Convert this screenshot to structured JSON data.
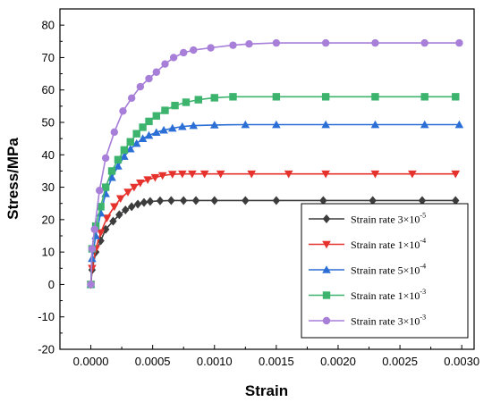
{
  "chart_data": {
    "type": "line",
    "title": "",
    "xlabel": "Strain",
    "ylabel": "Stress/MPa",
    "xlim": [
      -0.00025,
      0.0031
    ],
    "ylim": [
      -20,
      85
    ],
    "xticks": [
      0.0,
      0.0005,
      0.001,
      0.0015,
      0.002,
      0.0025,
      0.003
    ],
    "xtick_labels": [
      "0.0000",
      "0.0005",
      "0.0010",
      "0.0015",
      "0.0020",
      "0.0025",
      "0.0030"
    ],
    "yticks": [
      -20,
      -10,
      0,
      10,
      20,
      30,
      40,
      50,
      60,
      70,
      80
    ],
    "yminor_step": 5,
    "xminor_step": 0.00025,
    "grid": false,
    "legend_position": "bottom-right",
    "series": [
      {
        "base": "Strain rate ",
        "mantissa": "3×10",
        "exponent": "-5",
        "color": "#3c3c3c",
        "marker": "diamond",
        "x": [
          0,
          1e-05,
          4e-05,
          8e-05,
          0.00012,
          0.00018,
          0.00023,
          0.00028,
          0.00033,
          0.00038,
          0.00043,
          0.00048,
          0.00056,
          0.00065,
          0.00075,
          0.00085,
          0.001,
          0.00125,
          0.0015,
          0.00188,
          0.00228,
          0.00268,
          0.00295
        ],
        "y": [
          0,
          4.5,
          10,
          13.5,
          17,
          19.5,
          21.5,
          23,
          24,
          24.8,
          25.3,
          25.6,
          25.8,
          25.9,
          25.9,
          25.9,
          25.9,
          25.9,
          25.9,
          25.9,
          25.9,
          25.9,
          25.9
        ]
      },
      {
        "base": "Strain rate ",
        "mantissa": "1×10",
        "exponent": "-4",
        "color": "#e6322d",
        "marker": "triangle-down",
        "x": [
          0,
          1e-05,
          4e-05,
          8e-05,
          0.00013,
          0.00019,
          0.00024,
          0.0003,
          0.00035,
          0.0004,
          0.00046,
          0.00052,
          0.00058,
          0.00066,
          0.00074,
          0.00082,
          0.00092,
          0.00105,
          0.0013,
          0.0016,
          0.0019,
          0.0023,
          0.0026,
          0.00295
        ],
        "y": [
          0,
          5,
          11,
          16,
          20.5,
          24,
          26.5,
          28.5,
          30,
          31.3,
          32.3,
          33,
          33.6,
          34,
          34.1,
          34.1,
          34.1,
          34.1,
          34.1,
          34.1,
          34.1,
          34.1,
          34.1,
          34.1
        ]
      },
      {
        "base": "Strain rate ",
        "mantissa": "5×10",
        "exponent": "-4",
        "color": "#2b6fd6",
        "marker": "triangle-up",
        "x": [
          0,
          1e-05,
          4e-05,
          8e-05,
          0.00012,
          0.00017,
          0.00022,
          0.00027,
          0.00032,
          0.00037,
          0.00042,
          0.00047,
          0.00053,
          0.00059,
          0.00066,
          0.00074,
          0.00083,
          0.001,
          0.00125,
          0.0015,
          0.0019,
          0.0023,
          0.0027,
          0.00298
        ],
        "y": [
          0,
          8,
          15,
          22,
          28,
          33,
          36.5,
          39.5,
          41.8,
          43.5,
          45,
          46,
          46.9,
          47.6,
          48.2,
          48.7,
          49,
          49.2,
          49.3,
          49.3,
          49.3,
          49.3,
          49.3,
          49.3
        ]
      },
      {
        "base": "Strain rate ",
        "mantissa": "1×10",
        "exponent": "-3",
        "color": "#3cb46e",
        "marker": "square",
        "x": [
          0,
          1e-05,
          4e-05,
          8e-05,
          0.00012,
          0.00017,
          0.00022,
          0.00027,
          0.00032,
          0.00037,
          0.00042,
          0.00047,
          0.00053,
          0.0006,
          0.00068,
          0.00077,
          0.00087,
          0.001,
          0.00115,
          0.0015,
          0.0019,
          0.0023,
          0.0027,
          0.00295
        ],
        "y": [
          0,
          11,
          18,
          24,
          30,
          35,
          38.5,
          41.5,
          44,
          46.5,
          48.5,
          50.3,
          52,
          53.7,
          55.2,
          56.2,
          57,
          57.6,
          57.9,
          57.9,
          57.9,
          57.9,
          57.9,
          57.9
        ]
      },
      {
        "base": "Strain rate ",
        "mantissa": "3×10",
        "exponent": "-3",
        "color": "#a77ed8",
        "marker": "circle",
        "x": [
          0,
          1e-05,
          3e-05,
          7e-05,
          0.00012,
          0.00019,
          0.00026,
          0.00033,
          0.0004,
          0.00047,
          0.00053,
          0.0006,
          0.00067,
          0.00075,
          0.00083,
          0.00097,
          0.00115,
          0.00128,
          0.0015,
          0.0019,
          0.0023,
          0.0027,
          0.00298
        ],
        "y": [
          0,
          11,
          17,
          29,
          39,
          47,
          53.5,
          57.5,
          61,
          63.5,
          65.5,
          68,
          70,
          71.5,
          72.3,
          73,
          73.8,
          74.2,
          74.5,
          74.5,
          74.5,
          74.5,
          74.5
        ]
      }
    ]
  }
}
